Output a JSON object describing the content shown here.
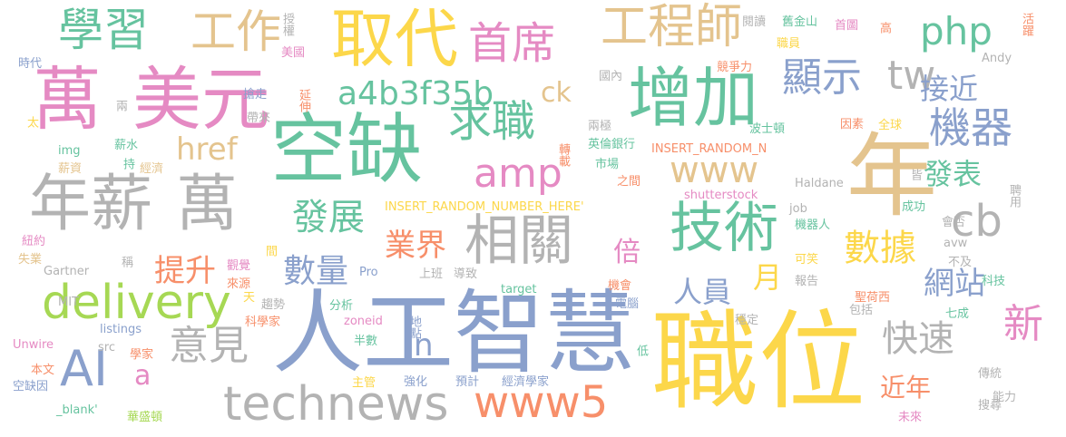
{
  "palette": {
    "yellow": "#fcd74a",
    "blue": "#8aa0cc",
    "green": "#66c39f",
    "orange": "#f78f6a",
    "tan": "#e4c48e",
    "gray": "#b3b3b3",
    "pink": "#e58ac3",
    "lime": "#a6d854",
    "background": "#ffffff"
  },
  "words": [
    {
      "text": "職位",
      "color": "yellow"
    },
    {
      "text": "人工智慧",
      "color": "blue"
    },
    {
      "text": "年",
      "color": "tan"
    },
    {
      "text": "空缺",
      "color": "green"
    },
    {
      "text": "取代",
      "color": "yellow"
    },
    {
      "text": "萬",
      "color": "pink"
    },
    {
      "text": "美元",
      "color": "pink"
    },
    {
      "text": "年薪",
      "color": "gray"
    },
    {
      "text": "萬",
      "color": "gray"
    },
    {
      "text": "增加",
      "color": "green"
    },
    {
      "text": "技術",
      "color": "green"
    },
    {
      "text": "technews",
      "color": "gray"
    },
    {
      "text": "delivery",
      "color": "lime"
    },
    {
      "text": "AI",
      "color": "blue"
    },
    {
      "text": "相關",
      "color": "gray"
    },
    {
      "text": "www5",
      "color": "orange"
    },
    {
      "text": "工程師",
      "color": "tan"
    },
    {
      "text": "學習",
      "color": "green"
    },
    {
      "text": "工作",
      "color": "tan"
    },
    {
      "text": "首席",
      "color": "pink"
    },
    {
      "text": "求職",
      "color": "green"
    },
    {
      "text": "amp",
      "color": "pink"
    },
    {
      "text": "www",
      "color": "tan"
    },
    {
      "text": "cb",
      "color": "gray"
    },
    {
      "text": "機器",
      "color": "blue"
    },
    {
      "text": "顯示",
      "color": "blue"
    },
    {
      "text": "tw",
      "color": "gray"
    },
    {
      "text": "php",
      "color": "green"
    },
    {
      "text": "a4b3f35b",
      "color": "green"
    },
    {
      "text": "發展",
      "color": "green"
    },
    {
      "text": "數據",
      "color": "yellow"
    },
    {
      "text": "意見",
      "color": "gray"
    },
    {
      "text": "快速",
      "color": "gray"
    },
    {
      "text": "新",
      "color": "pink"
    },
    {
      "text": "發表",
      "color": "green"
    },
    {
      "text": "接近",
      "color": "blue"
    },
    {
      "text": "網站",
      "color": "blue"
    },
    {
      "text": "數量",
      "color": "blue"
    },
    {
      "text": "人員",
      "color": "blue"
    },
    {
      "text": "業界",
      "color": "orange"
    },
    {
      "text": "提升",
      "color": "orange"
    },
    {
      "text": "href",
      "color": "tan"
    },
    {
      "text": "ck",
      "color": "tan"
    },
    {
      "text": "月",
      "color": "yellow"
    },
    {
      "text": "倍",
      "color": "pink"
    },
    {
      "text": "n",
      "color": "blue"
    },
    {
      "text": "a",
      "color": "pink"
    },
    {
      "text": "近年",
      "color": "orange"
    },
    {
      "text": "INSERT_RANDOM_NUMBER_HERE'",
      "color": "yellow"
    },
    {
      "text": "INSERT_RANDOM_N",
      "color": "orange"
    },
    {
      "text": "shutterstock",
      "color": "pink"
    },
    {
      "text": "Haldane",
      "color": "gray"
    },
    {
      "text": "英倫銀行",
      "color": "green"
    },
    {
      "text": "聖荷西",
      "color": "orange"
    },
    {
      "text": "波士頓",
      "color": "green"
    },
    {
      "text": "全球",
      "color": "yellow"
    },
    {
      "text": "因素",
      "color": "orange"
    },
    {
      "text": "聘用",
      "color": "gray"
    },
    {
      "text": "舊金山",
      "color": "green"
    },
    {
      "text": "職員",
      "color": "yellow"
    },
    {
      "text": "閱讀",
      "color": "gray"
    },
    {
      "text": "首圖",
      "color": "pink"
    },
    {
      "text": "高",
      "color": "orange"
    },
    {
      "text": "活躍",
      "color": "orange"
    },
    {
      "text": "Andy",
      "color": "gray"
    },
    {
      "text": "競爭力",
      "color": "orange"
    },
    {
      "text": "國內",
      "color": "gray"
    },
    {
      "text": "兩極",
      "color": "gray"
    },
    {
      "text": "市場",
      "color": "green"
    },
    {
      "text": "之間",
      "color": "orange"
    },
    {
      "text": "轉載",
      "color": "orange"
    },
    {
      "text": "job",
      "color": "gray"
    },
    {
      "text": "成功",
      "color": "green"
    },
    {
      "text": "機器人",
      "color": "green"
    },
    {
      "text": "會否",
      "color": "gray"
    },
    {
      "text": "可笑",
      "color": "yellow"
    },
    {
      "text": "不及",
      "color": "gray"
    },
    {
      "text": "科技",
      "color": "green"
    },
    {
      "text": "avw",
      "color": "gray"
    },
    {
      "text": "報告",
      "color": "gray"
    },
    {
      "text": "包括",
      "color": "gray"
    },
    {
      "text": "七成",
      "color": "green"
    },
    {
      "text": "穩定",
      "color": "gray"
    },
    {
      "text": "傳統",
      "color": "gray"
    },
    {
      "text": "能力",
      "color": "gray"
    },
    {
      "text": "搜尋",
      "color": "gray"
    },
    {
      "text": "未來",
      "color": "pink"
    },
    {
      "text": "低",
      "color": "green"
    },
    {
      "text": "皆",
      "color": "gray"
    },
    {
      "text": "授權",
      "color": "gray"
    },
    {
      "text": "美國",
      "color": "pink"
    },
    {
      "text": "延伸",
      "color": "orange"
    },
    {
      "text": "搶走",
      "color": "blue"
    },
    {
      "text": "帶來",
      "color": "gray"
    },
    {
      "text": "時代",
      "color": "blue"
    },
    {
      "text": "太",
      "color": "yellow"
    },
    {
      "text": "兩",
      "color": "gray"
    },
    {
      "text": "img",
      "color": "green"
    },
    {
      "text": "薪水",
      "color": "green"
    },
    {
      "text": "經濟",
      "color": "tan"
    },
    {
      "text": "薪資",
      "color": "tan"
    },
    {
      "text": "持",
      "color": "green"
    },
    {
      "text": "紐約",
      "color": "pink"
    },
    {
      "text": "失業",
      "color": "tan"
    },
    {
      "text": "Gartner",
      "color": "gray"
    },
    {
      "text": "稱",
      "color": "gray"
    },
    {
      "text": "MIT",
      "color": "gray"
    },
    {
      "text": "觀覺",
      "color": "pink"
    },
    {
      "text": "來源",
      "color": "orange"
    },
    {
      "text": "間",
      "color": "yellow"
    },
    {
      "text": "Pro",
      "color": "blue"
    },
    {
      "text": "上班",
      "color": "gray"
    },
    {
      "text": "導致",
      "color": "gray"
    },
    {
      "text": "target",
      "color": "green"
    },
    {
      "text": "機會",
      "color": "orange"
    },
    {
      "text": "電腦",
      "color": "blue"
    },
    {
      "text": "天",
      "color": "yellow"
    },
    {
      "text": "趨勢",
      "color": "gray"
    },
    {
      "text": "分析",
      "color": "green"
    },
    {
      "text": "科學家",
      "color": "orange"
    },
    {
      "text": "zoneid",
      "color": "pink"
    },
    {
      "text": "地點",
      "color": "blue"
    },
    {
      "text": "listings",
      "color": "blue"
    },
    {
      "text": "src",
      "color": "gray"
    },
    {
      "text": "Unwire",
      "color": "pink"
    },
    {
      "text": "學家",
      "color": "orange"
    },
    {
      "text": "半數",
      "color": "green"
    },
    {
      "text": "本文",
      "color": "orange"
    },
    {
      "text": "空缺因",
      "color": "blue"
    },
    {
      "text": "主管",
      "color": "yellow"
    },
    {
      "text": "強化",
      "color": "blue"
    },
    {
      "text": "預計",
      "color": "blue"
    },
    {
      "text": "經濟學家",
      "color": "blue"
    },
    {
      "text": "_blank'",
      "color": "green"
    },
    {
      "text": "華盛頓",
      "color": "lime"
    }
  ]
}
